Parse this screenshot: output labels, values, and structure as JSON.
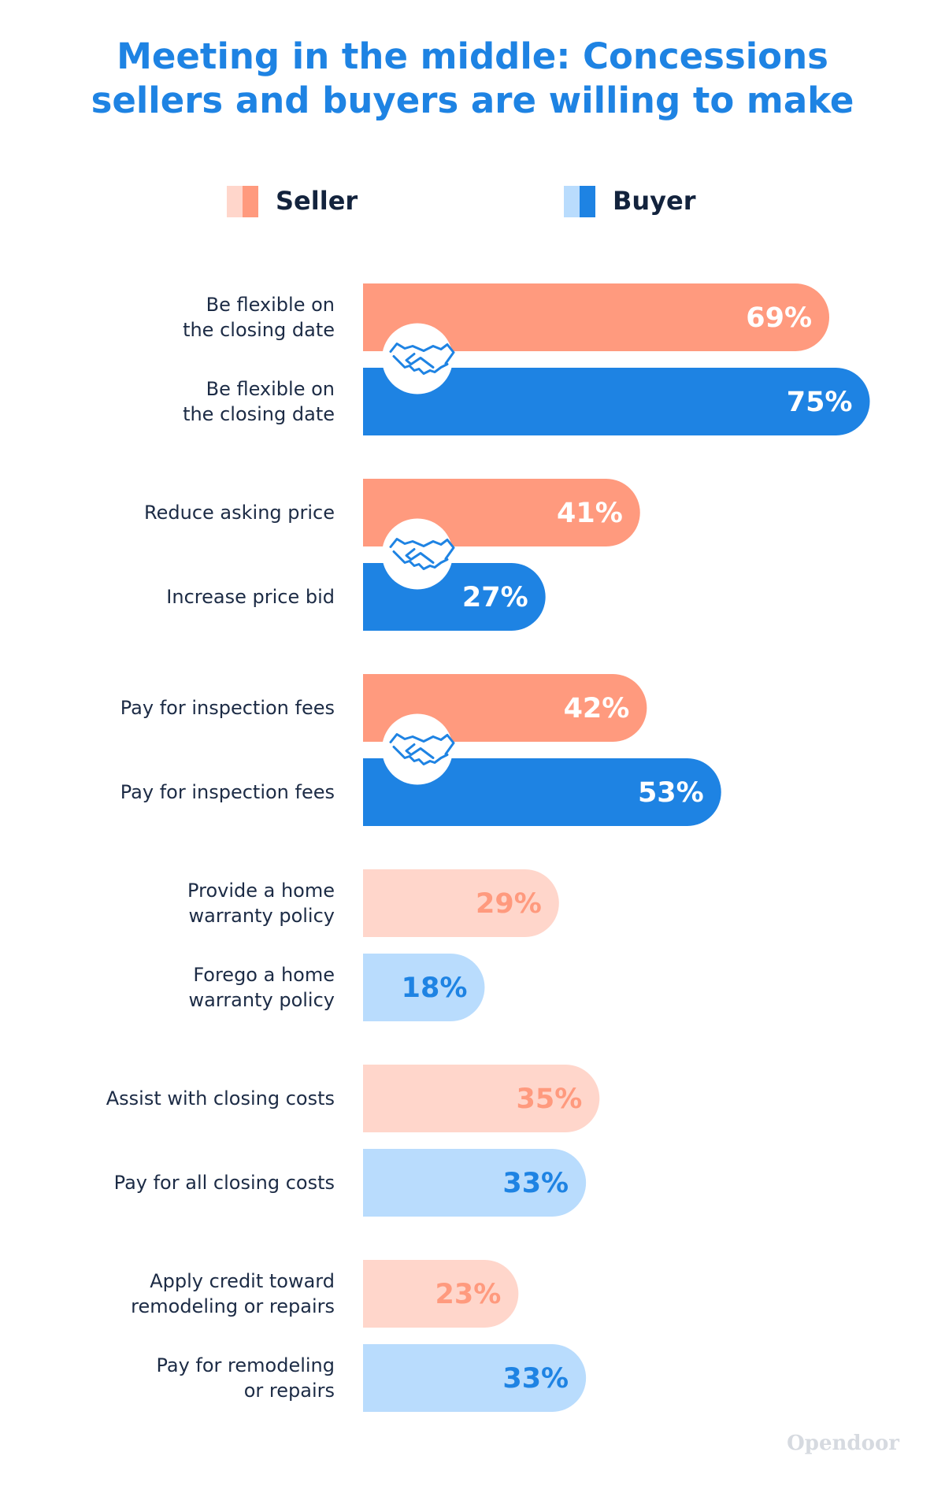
{
  "chart_data": {
    "type": "paired-bar",
    "title": "Meeting in the middle: Concessions\nsellers and buyers are willing to make",
    "highlighted": [
      true,
      true,
      true,
      false,
      false,
      false
    ],
    "series": [
      {
        "name": "Seller",
        "color": "#ff9a7e",
        "light_color": "#ffd6cb",
        "labels": [
          "Be flexible on\nthe closing date",
          "Reduce asking price",
          "Pay for inspection fees",
          "Provide a home\nwarranty policy",
          "Assist with closing costs",
          "Apply credit toward\nremodeling or repairs"
        ],
        "values": [
          69,
          41,
          42,
          29,
          35,
          23
        ],
        "value_labels": [
          "69%",
          "41%",
          "42%",
          "29%",
          "35%",
          "23%"
        ]
      },
      {
        "name": "Buyer",
        "color": "#1e83e3",
        "light_color": "#b9dcfd",
        "labels": [
          "Be flexible on\nthe closing date",
          "Increase price bid",
          "Pay for inspection fees",
          "Forego a home\nwarranty policy",
          "Pay for all closing costs",
          "Pay for remodeling\nor repairs"
        ],
        "values": [
          75,
          27,
          53,
          18,
          33,
          33
        ],
        "value_labels": [
          "75%",
          "27%",
          "53%",
          "18%",
          "33%",
          "33%"
        ]
      }
    ],
    "footer": "Opendoor"
  }
}
